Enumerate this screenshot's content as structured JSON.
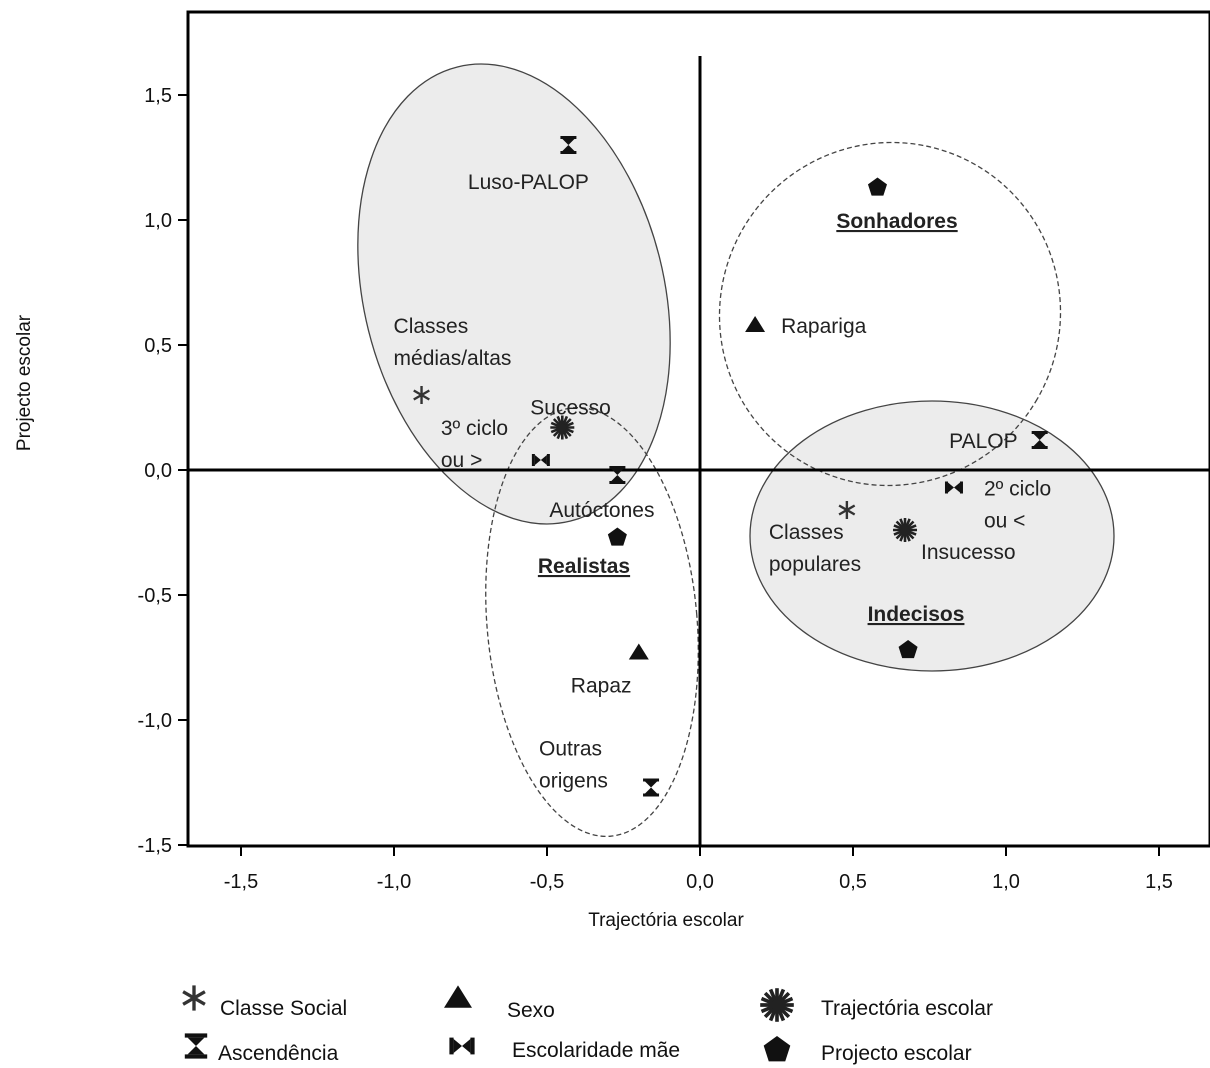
{
  "chart_data": {
    "type": "scatter",
    "xlabel": "Trajectória escolar",
    "ylabel": "Projecto escolar",
    "xlim": [
      -1.65,
      1.65
    ],
    "ylim": [
      -1.5,
      1.85
    ],
    "xticks": [
      "-1,5",
      "-1,0",
      "-0,5",
      "0,0",
      "0,5",
      "1,0",
      "1,5"
    ],
    "xtick_values": [
      -1.5,
      -1.0,
      -0.5,
      0.0,
      0.5,
      1.0,
      1.5
    ],
    "yticks": [
      "1,5",
      "1,0",
      "0,5",
      "0,0",
      "-0,5",
      "-1,0",
      "-1,5"
    ],
    "ytick_values": [
      1.5,
      1.0,
      0.5,
      0.0,
      -0.5,
      -1.0,
      -1.5
    ],
    "grid": false,
    "legend_position": "bottom",
    "points": [
      {
        "label_lines": [
          "Luso-PALOP"
        ],
        "x": -0.43,
        "y": 1.3,
        "marker": "hourglass"
      },
      {
        "label_lines": [
          "Classes",
          "médias/altas"
        ],
        "x": -0.91,
        "y": 0.3,
        "marker": "asterisk"
      },
      {
        "label_lines": [
          "Sucesso"
        ],
        "x": -0.45,
        "y": 0.17,
        "marker": "burst"
      },
      {
        "label_lines": [
          "3º ciclo",
          "ou >"
        ],
        "x": -0.52,
        "y": 0.04,
        "marker": "bowtie"
      },
      {
        "label_lines": [
          "Autóctones"
        ],
        "x": -0.27,
        "y": -0.02,
        "marker": "hourglass"
      },
      {
        "label_lines": [
          "Rapaz"
        ],
        "x": -0.2,
        "y": -0.73,
        "marker": "triangle"
      },
      {
        "label_lines": [
          "Outras",
          "origens"
        ],
        "x": -0.16,
        "y": -1.27,
        "marker": "hourglass"
      },
      {
        "label_lines": [
          "Rapariga"
        ],
        "x": 0.18,
        "y": 0.58,
        "marker": "triangle"
      },
      {
        "label_lines": [
          "PALOP"
        ],
        "x": 1.11,
        "y": 0.12,
        "marker": "hourglass"
      },
      {
        "label_lines": [
          "2º ciclo",
          "ou <"
        ],
        "x": 0.83,
        "y": -0.07,
        "marker": "bowtie"
      },
      {
        "label_lines": [
          "Classes",
          "populares"
        ],
        "x": 0.48,
        "y": -0.16,
        "marker": "asterisk"
      },
      {
        "label_lines": [
          "Insucesso"
        ],
        "x": 0.67,
        "y": -0.24,
        "marker": "burst"
      },
      {
        "label_lines": [
          ""
        ],
        "x": 0.58,
        "y": 1.13,
        "marker": "pentagon"
      },
      {
        "label_lines": [
          ""
        ],
        "x": -0.27,
        "y": -0.27,
        "marker": "pentagon"
      },
      {
        "label_lines": [
          ""
        ],
        "x": 0.68,
        "y": -0.72,
        "marker": "pentagon"
      }
    ],
    "groups": [
      {
        "name": "Sonhadores",
        "style": "dashed",
        "filled": false
      },
      {
        "name": "Realistas",
        "style": "dashed",
        "filled": false
      },
      {
        "name": "Indecisos",
        "style": "solid",
        "filled": true
      }
    ],
    "legend": [
      {
        "marker": "asterisk",
        "label": "Classe Social"
      },
      {
        "marker": "triangle",
        "label": "Sexo"
      },
      {
        "marker": "burst",
        "label": "Trajectória escolar"
      },
      {
        "marker": "hourglass",
        "label": "Ascendência"
      },
      {
        "marker": "bowtie",
        "label": "Escolaridade mãe"
      },
      {
        "marker": "pentagon",
        "label": "Projecto escolar"
      }
    ]
  }
}
